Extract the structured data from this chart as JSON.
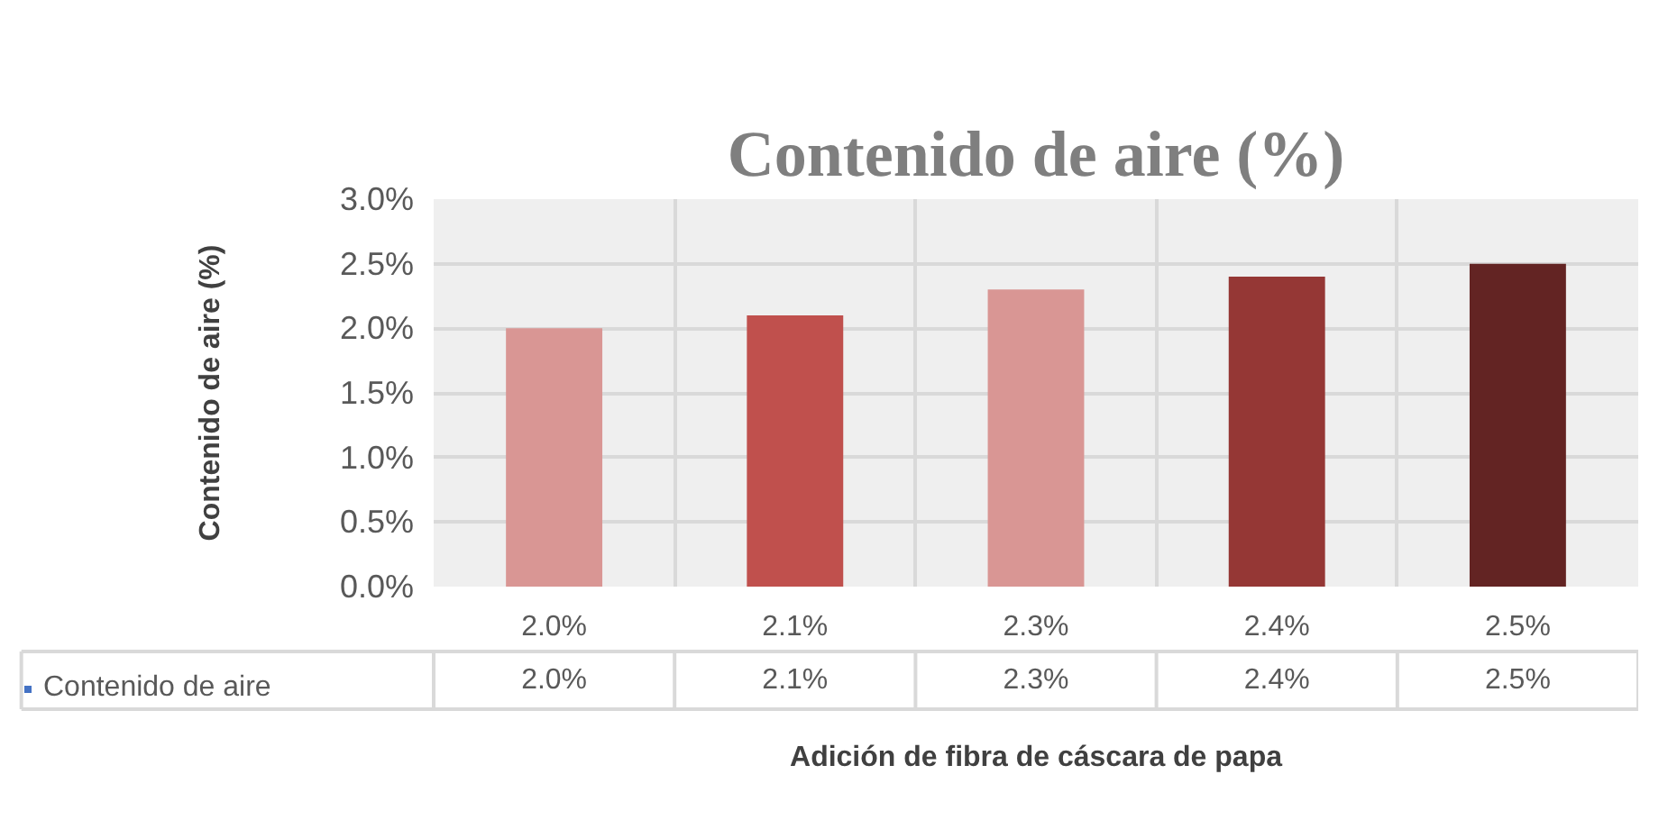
{
  "chart_data": {
    "type": "bar",
    "title": "Contenido de aire (%)",
    "xlabel": "Adición de fibra de cáscara de papa",
    "ylabel": "Contenido de aire (%)",
    "categories": [
      "2.0%",
      "2.1%",
      "2.3%",
      "2.4%",
      "2.5%"
    ],
    "series": [
      {
        "name": "Contenido de aire",
        "color": "#4472c4",
        "colors": [
          "#d99694",
          "#c0504d",
          "#d99694",
          "#953735",
          "#632423"
        ],
        "values": [
          2.0,
          2.1,
          2.3,
          2.4,
          2.5
        ],
        "value_labels": [
          "2.0%",
          "2.1%",
          "2.3%",
          "2.4%",
          "2.5%"
        ]
      }
    ],
    "ylim": [
      0,
      3.0
    ],
    "yticks": [
      {
        "value": 0,
        "label": "0.0%"
      },
      {
        "value": 0.5,
        "label": "0.5%"
      },
      {
        "value": 1.0,
        "label": "1.0%"
      },
      {
        "value": 1.5,
        "label": "1.5%"
      },
      {
        "value": 2.0,
        "label": "2.0%"
      },
      {
        "value": 2.5,
        "label": "2.5%"
      },
      {
        "value": 3.0,
        "label": "3.0%"
      }
    ],
    "grid": true,
    "legend": "bottom"
  }
}
